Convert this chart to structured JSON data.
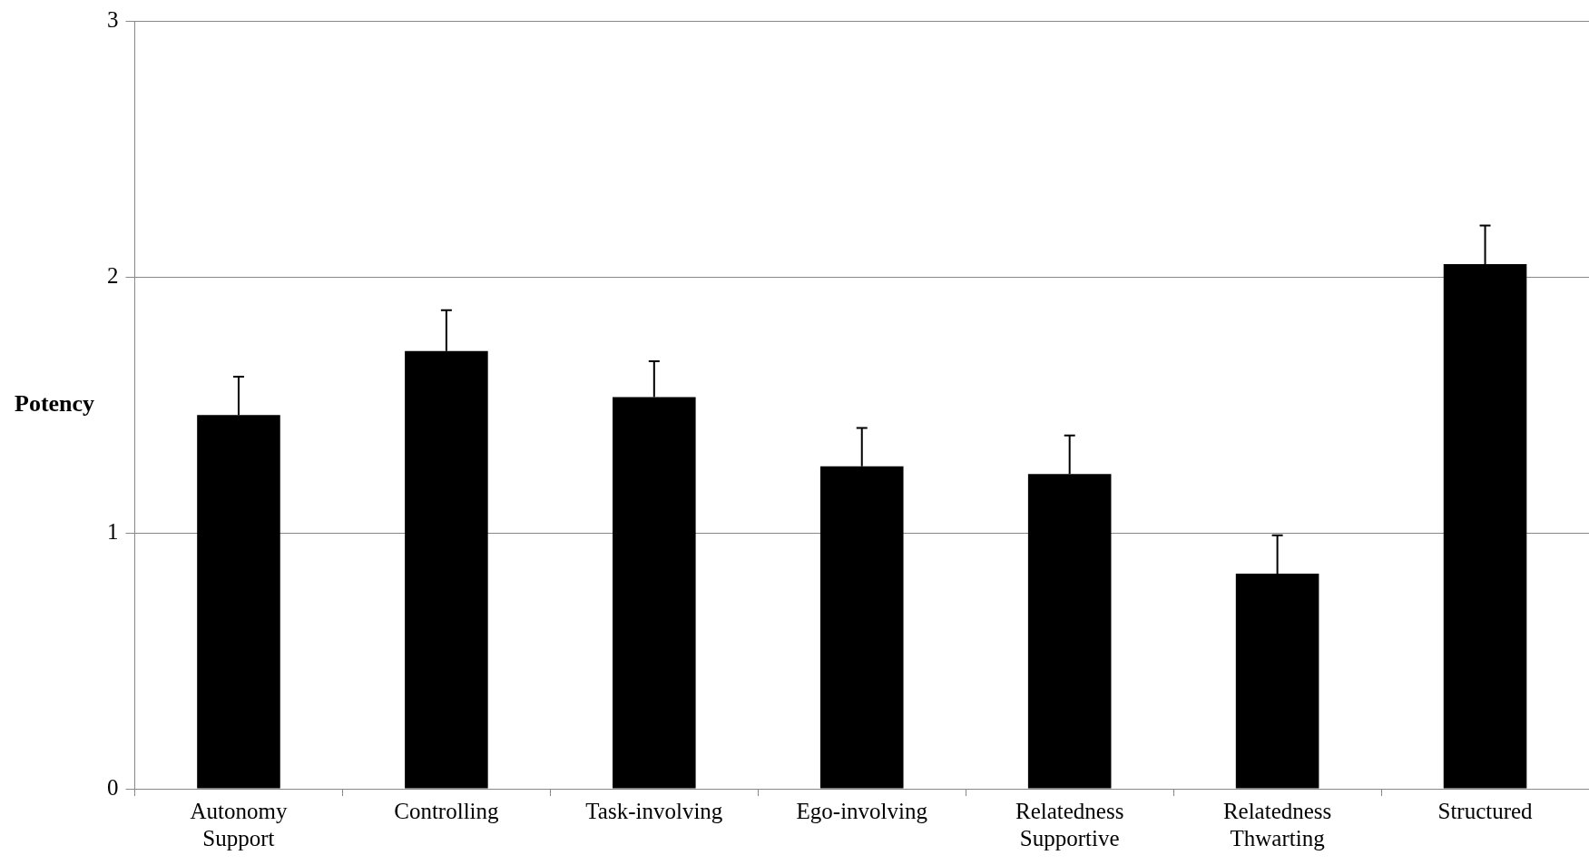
{
  "chart_data": {
    "type": "bar",
    "ylabel": "Potency",
    "categories": [
      "Autonomy Support",
      "Controlling",
      "Task-involving",
      "Ego-involving",
      "Relatedness Supportive",
      "Relatedness Thwarting",
      "Structured"
    ],
    "values": [
      1.46,
      1.71,
      1.53,
      1.26,
      1.23,
      0.84,
      2.05
    ],
    "errors": [
      [
        1.46,
        1.61
      ],
      [
        1.71,
        1.87
      ],
      [
        1.53,
        1.67
      ],
      [
        1.26,
        1.41
      ],
      [
        1.23,
        1.38
      ],
      [
        0.84,
        0.99
      ],
      [
        2.05,
        2.2
      ]
    ],
    "color": "#000000",
    "ylim": [
      0,
      3
    ],
    "yticks": [
      0,
      1,
      2,
      3
    ],
    "grid": "y"
  }
}
